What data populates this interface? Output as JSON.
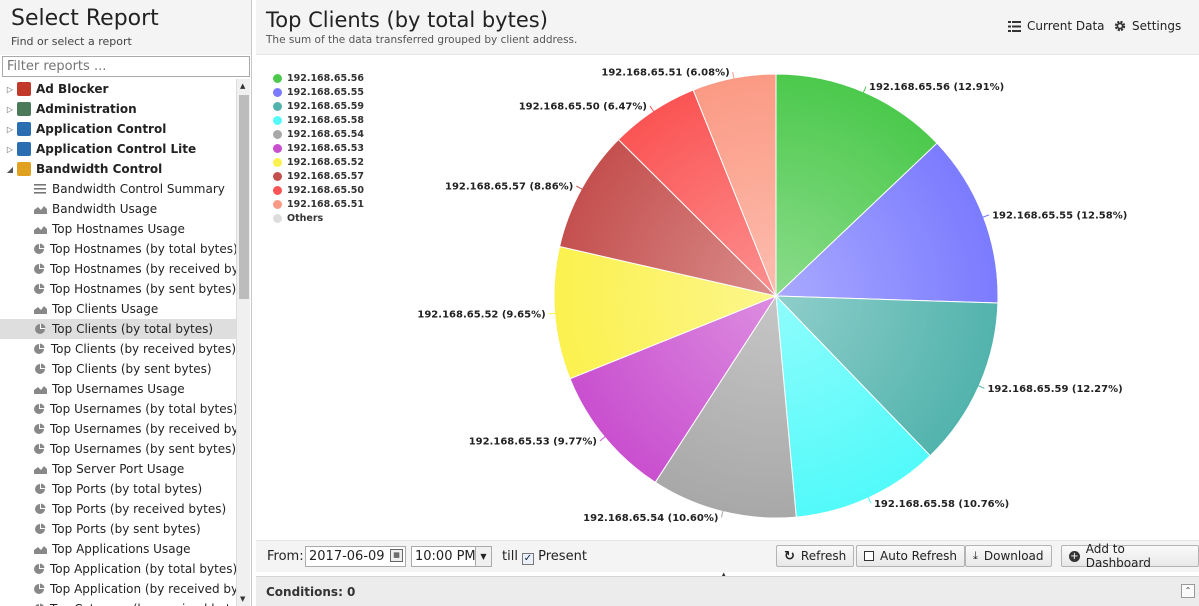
{
  "left_panel": {
    "title": "Select Report",
    "subtitle": "Find or select a report",
    "filter_placeholder": "Filter reports ...",
    "categories": [
      {
        "label": "Ad Blocker",
        "color": "#c0392b",
        "expanded": false
      },
      {
        "label": "Administration",
        "color": "#4a7a5a",
        "expanded": false
      },
      {
        "label": "Application Control",
        "color": "#2a6db0",
        "expanded": false
      },
      {
        "label": "Application Control Lite",
        "color": "#2a6db0",
        "expanded": false
      },
      {
        "label": "Bandwidth Control",
        "color": "#e0a020",
        "expanded": true
      }
    ],
    "items": [
      {
        "label": "Bandwidth Control Summary",
        "icon": "list-icon"
      },
      {
        "label": "Bandwidth Usage",
        "icon": "area-chart-icon"
      },
      {
        "label": "Top Hostnames Usage",
        "icon": "area-chart-icon"
      },
      {
        "label": "Top Hostnames (by total bytes)",
        "icon": "pie-chart-icon"
      },
      {
        "label": "Top Hostnames (by received byte...",
        "icon": "pie-chart-icon"
      },
      {
        "label": "Top Hostnames (by sent bytes)",
        "icon": "pie-chart-icon"
      },
      {
        "label": "Top Clients Usage",
        "icon": "area-chart-icon"
      },
      {
        "label": "Top Clients (by total bytes)",
        "icon": "pie-chart-icon",
        "selected": true
      },
      {
        "label": "Top Clients (by received bytes)",
        "icon": "pie-chart-icon"
      },
      {
        "label": "Top Clients (by sent bytes)",
        "icon": "pie-chart-icon"
      },
      {
        "label": "Top Usernames Usage",
        "icon": "area-chart-icon"
      },
      {
        "label": "Top Usernames (by total bytes)",
        "icon": "pie-chart-icon"
      },
      {
        "label": "Top Usernames (by received bytes)",
        "icon": "pie-chart-icon"
      },
      {
        "label": "Top Usernames (by sent bytes)",
        "icon": "pie-chart-icon"
      },
      {
        "label": "Top Server Port Usage",
        "icon": "area-chart-icon"
      },
      {
        "label": "Top Ports (by total bytes)",
        "icon": "pie-chart-icon"
      },
      {
        "label": "Top Ports (by received bytes)",
        "icon": "pie-chart-icon"
      },
      {
        "label": "Top Ports (by sent bytes)",
        "icon": "pie-chart-icon"
      },
      {
        "label": "Top Applications Usage",
        "icon": "area-chart-icon"
      },
      {
        "label": "Top Application (by total bytes)",
        "icon": "pie-chart-icon"
      },
      {
        "label": "Top Application (by received bytes)",
        "icon": "pie-chart-icon"
      },
      {
        "label": "Top Category (by received bytes)",
        "icon": "pie-chart-icon"
      }
    ]
  },
  "header": {
    "title": "Top Clients (by total bytes)",
    "subtitle": "The sum of the data transferred grouped by client address.",
    "current_data_label": "Current Data",
    "settings_label": "Settings"
  },
  "toolbar": {
    "from_label": "From:",
    "date_value": "2017-06-09",
    "time_value": "10:00 PM",
    "till_label": "till",
    "present_label": "Present",
    "present_checked": true,
    "refresh_label": "Refresh",
    "auto_refresh_label": "Auto Refresh",
    "download_label": "Download",
    "add_dashboard_label": "Add to Dashboard"
  },
  "conditions": {
    "label": "Conditions: 0"
  },
  "chart_data": {
    "type": "pie",
    "title": "",
    "legend_position": "top-left",
    "series": [
      {
        "name": "192.168.65.56",
        "value": 12.91,
        "label": "192.168.65.56 (12.91%)",
        "color": "#4cc94c"
      },
      {
        "name": "192.168.65.55",
        "value": 12.58,
        "label": "192.168.65.55 (12.58%)",
        "color": "#7b7bff"
      },
      {
        "name": "192.168.65.59",
        "value": 12.27,
        "label": "192.168.65.59 (12.27%)",
        "color": "#52b3ad"
      },
      {
        "name": "192.168.65.58",
        "value": 10.76,
        "label": "192.168.65.58 (10.76%)",
        "color": "#52fafa"
      },
      {
        "name": "192.168.65.54",
        "value": 10.6,
        "label": "192.168.65.54 (10.60%)",
        "color": "#a8a8a8"
      },
      {
        "name": "192.168.65.53",
        "value": 9.77,
        "label": "192.168.65.53 (9.77%)",
        "color": "#c94fcf"
      },
      {
        "name": "192.168.65.52",
        "value": 9.65,
        "label": "192.168.65.52 (9.65%)",
        "color": "#fbf14e"
      },
      {
        "name": "192.168.65.57",
        "value": 8.86,
        "label": "192.168.65.57 (8.86%)",
        "color": "#c4504e"
      },
      {
        "name": "192.168.65.50",
        "value": 6.47,
        "label": "192.168.65.50 (6.47%)",
        "color": "#fb5454"
      },
      {
        "name": "192.168.65.51",
        "value": 6.08,
        "label": "192.168.65.51 (6.08%)",
        "color": "#fb9a84"
      },
      {
        "name": "Others",
        "value": 0,
        "label": "",
        "color": "#dddddd"
      }
    ]
  }
}
